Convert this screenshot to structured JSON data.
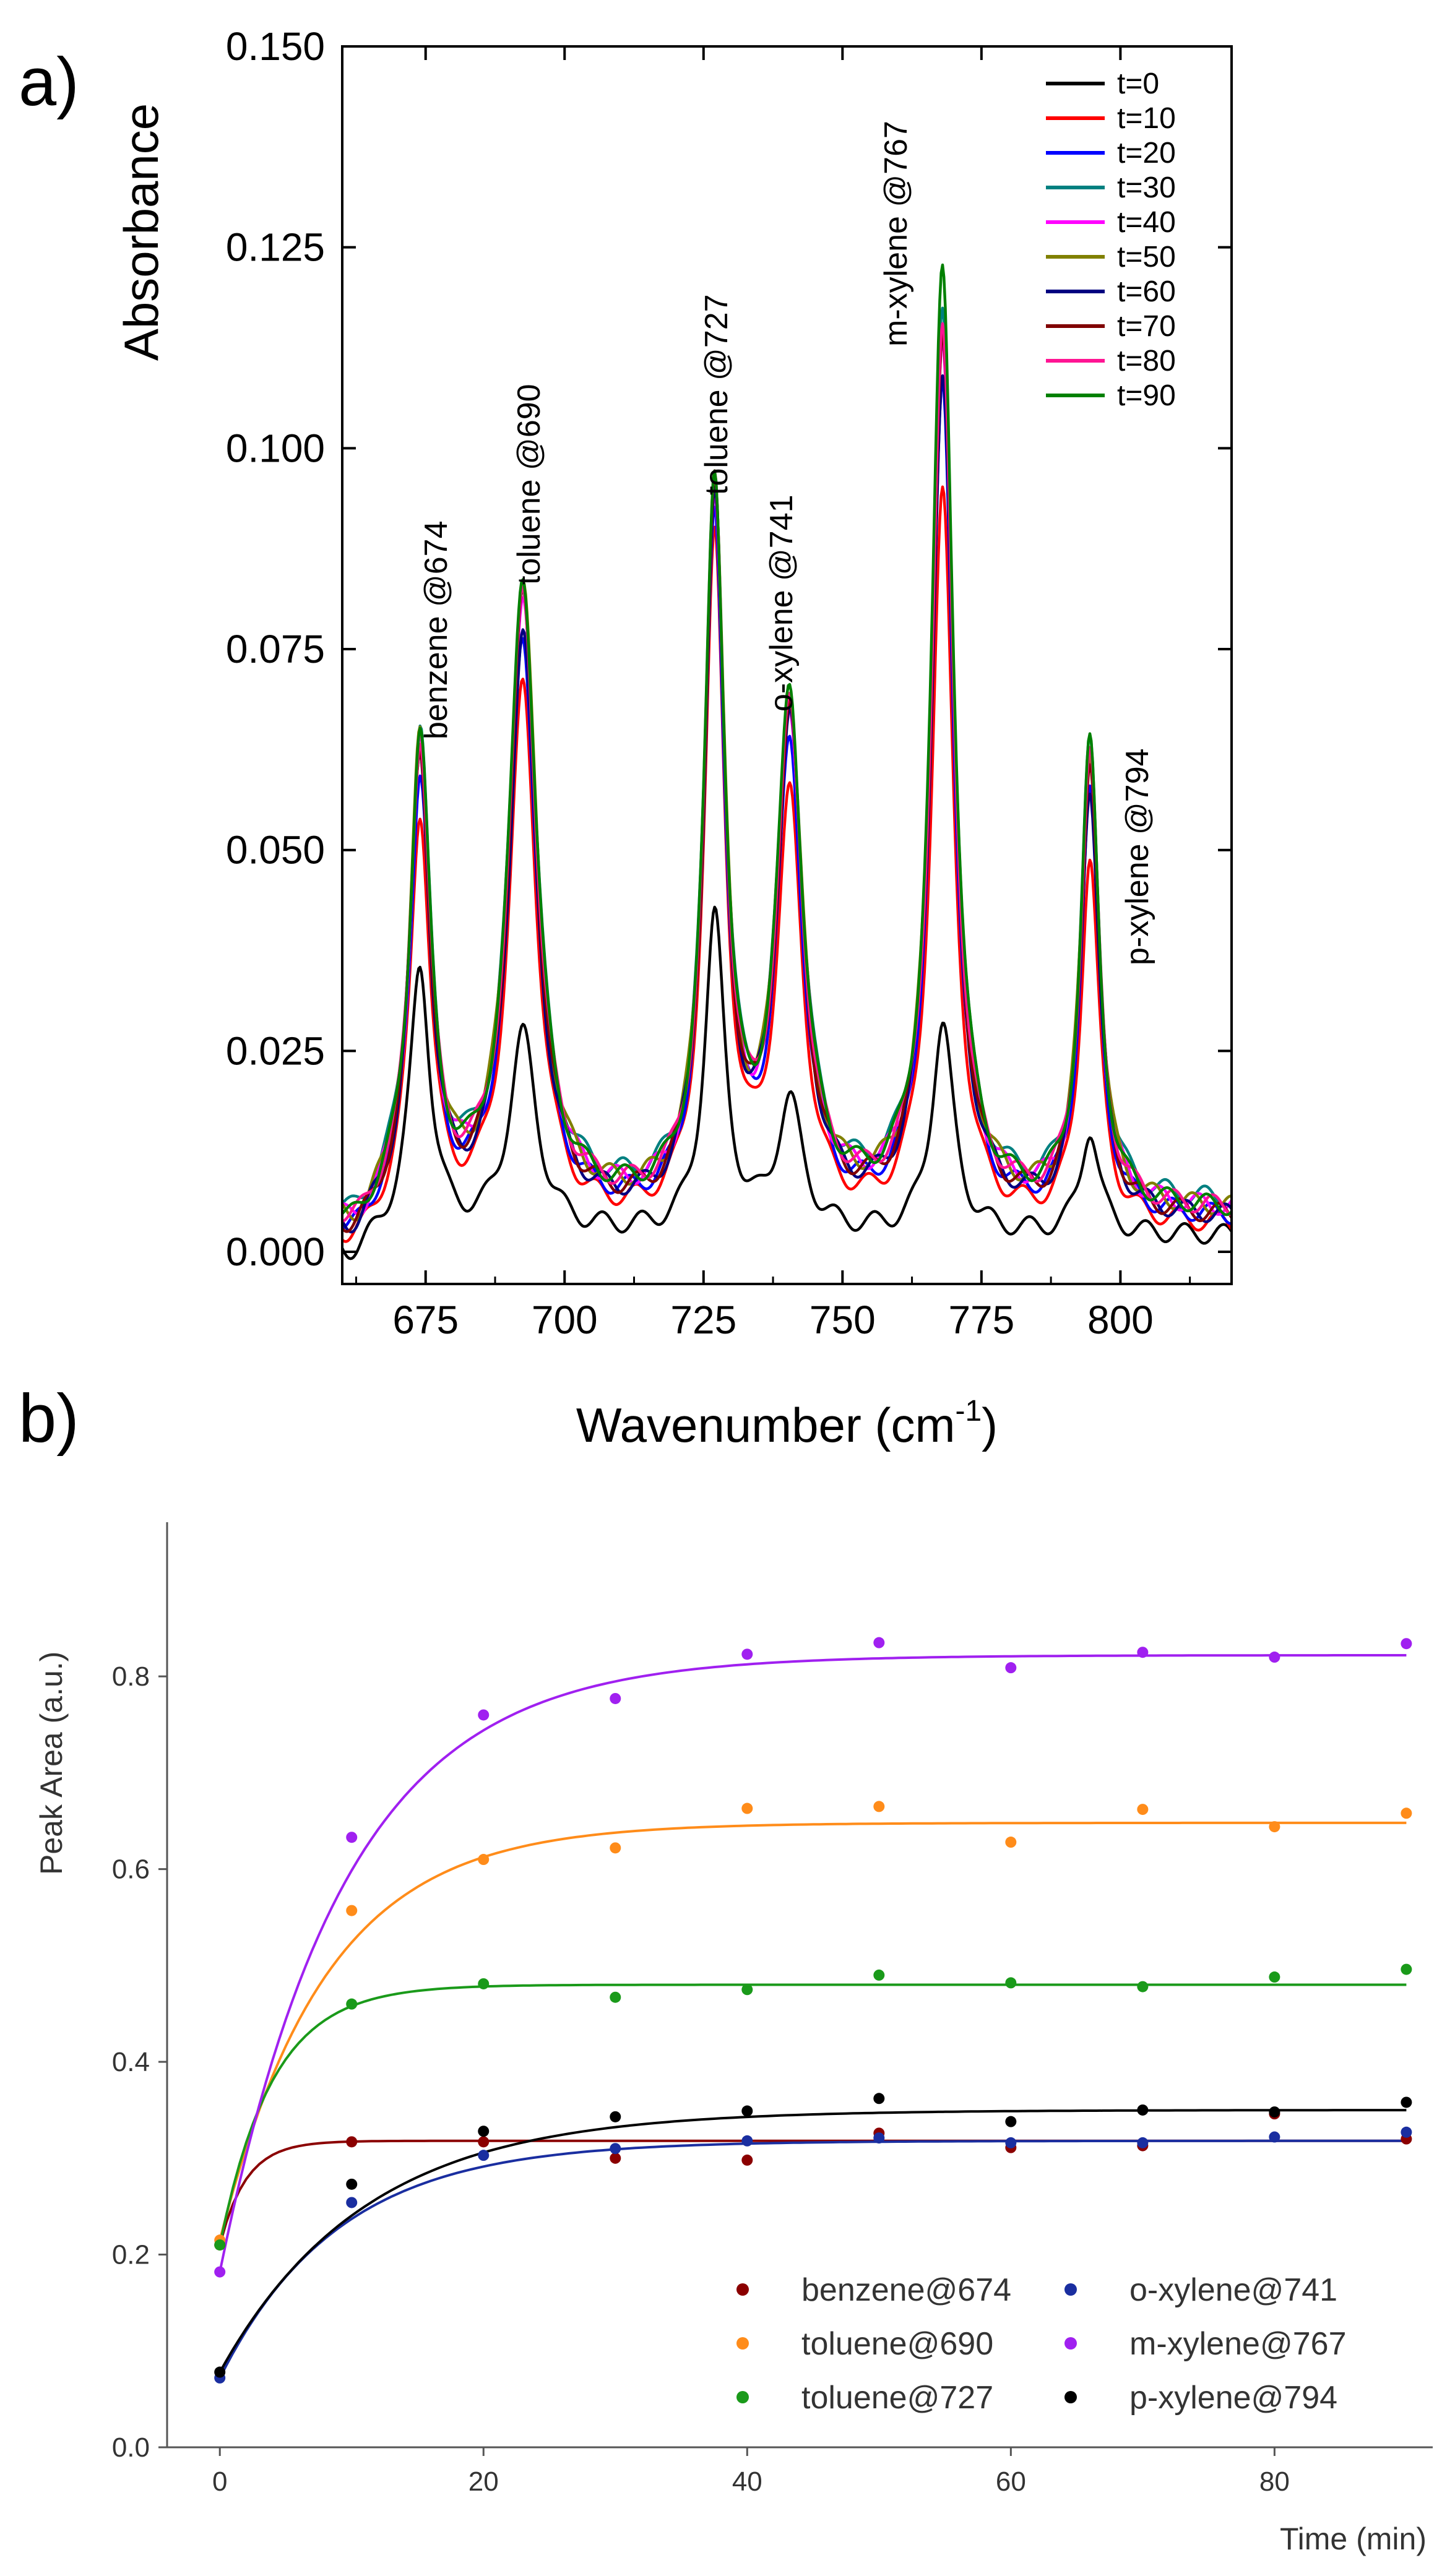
{
  "panel_a_letter": "a)",
  "panel_b_letter": "b)",
  "chart_data": [
    {
      "type": "line",
      "panel": "a)",
      "xlabel": "Wavenumber (cm",
      "xlabel_sup": "-1",
      "xlabel_close": ")",
      "ylabel": "Absorbance",
      "xlim": [
        660,
        820
      ],
      "ylim": [
        -0.004,
        0.15
      ],
      "xticks": [
        675,
        700,
        725,
        750,
        775,
        800
      ],
      "yticks": [
        0.0,
        0.025,
        0.05,
        0.075,
        0.1,
        0.125,
        0.15
      ],
      "xtick_labels": [
        "675",
        "700",
        "725",
        "750",
        "775",
        "800"
      ],
      "ytick_labels": [
        "0.000",
        "0.025",
        "0.050",
        "0.075",
        "0.100",
        "0.125",
        "0.150"
      ],
      "legend_position": "top-right",
      "peaks": [
        {
          "label": "benzene @674",
          "center": 674,
          "width": 2.2
        },
        {
          "label": "toluene @690",
          "center": 692.5,
          "width": 3.0
        },
        {
          "label": "toluene @727",
          "center": 727,
          "width": 2.2
        },
        {
          "label": "o-xylene @741",
          "center": 740.5,
          "width": 2.8
        },
        {
          "label": "m-xylene @767",
          "center": 768,
          "width": 2.4
        },
        {
          "label": "p-xylene @794",
          "center": 794.5,
          "width": 2.0
        }
      ],
      "series": [
        {
          "name": "t=0",
          "color": "#000000",
          "peaks": [
            0.033,
            0.0245,
            0.039,
            0.016,
            0.026,
            0.013
          ],
          "baseline": 0.002
        },
        {
          "name": "t=10",
          "color": "#ff0000",
          "peaks": [
            0.05,
            0.066,
            0.083,
            0.051,
            0.09,
            0.045
          ],
          "baseline": 0.003
        },
        {
          "name": "t=20",
          "color": "#0000ff",
          "peaks": [
            0.054,
            0.071,
            0.085,
            0.056,
            0.102,
            0.052
          ],
          "baseline": 0.004
        },
        {
          "name": "t=30",
          "color": "#008080",
          "peaks": [
            0.057,
            0.076,
            0.087,
            0.06,
            0.11,
            0.056
          ],
          "baseline": 0.006
        },
        {
          "name": "t=40",
          "color": "#ff00ff",
          "peaks": [
            0.056,
            0.076,
            0.087,
            0.06,
            0.108,
            0.055
          ],
          "baseline": 0.005
        },
        {
          "name": "t=50",
          "color": "#808000",
          "peaks": [
            0.057,
            0.077,
            0.088,
            0.06,
            0.11,
            0.056
          ],
          "baseline": 0.005
        },
        {
          "name": "t=60",
          "color": "#000080",
          "peaks": [
            0.056,
            0.071,
            0.087,
            0.06,
            0.104,
            0.053
          ],
          "baseline": 0.004
        },
        {
          "name": "t=70",
          "color": "#800000",
          "peaks": [
            0.057,
            0.076,
            0.088,
            0.06,
            0.108,
            0.056
          ],
          "baseline": 0.004
        },
        {
          "name": "t=80",
          "color": "#ff1493",
          "peaks": [
            0.057,
            0.076,
            0.088,
            0.06,
            0.108,
            0.056
          ],
          "baseline": 0.005
        },
        {
          "name": "t=90",
          "color": "#008000",
          "peaks": [
            0.058,
            0.078,
            0.089,
            0.062,
            0.116,
            0.057
          ],
          "baseline": 0.005
        }
      ]
    },
    {
      "type": "scatter",
      "panel": "b)",
      "xlabel": "Time (min)",
      "ylabel": "Peak Area (a.u.)",
      "xlim": [
        -4,
        92
      ],
      "ylim": [
        0.0,
        0.96
      ],
      "xticks": [
        0,
        20,
        40,
        60,
        80
      ],
      "yticks": [
        0.0,
        0.2,
        0.4,
        0.6,
        0.8
      ],
      "xtick_labels": [
        "0",
        "20",
        "40",
        "60",
        "80"
      ],
      "ytick_labels": [
        "0.0",
        "0.2",
        "0.4",
        "0.6",
        "0.8"
      ],
      "legend_position": "bottom-right",
      "series": [
        {
          "name": "benzene@674",
          "color": "#8b0000",
          "x": [
            0,
            10,
            20,
            30,
            40,
            50,
            60,
            70,
            80,
            90
          ],
          "y": [
            0.21,
            0.317,
            0.317,
            0.3,
            0.298,
            0.326,
            0.311,
            0.313,
            0.346,
            0.32
          ],
          "fit": {
            "y0": 0.21,
            "ymax": 0.318,
            "tau": 2.0
          }
        },
        {
          "name": "toluene@690",
          "color": "#ff8c1a",
          "x": [
            0,
            10,
            20,
            30,
            40,
            50,
            60,
            70,
            80,
            90
          ],
          "y": [
            0.215,
            0.557,
            0.61,
            0.622,
            0.663,
            0.665,
            0.628,
            0.662,
            0.644,
            0.658
          ],
          "fit": {
            "y0": 0.215,
            "ymax": 0.648,
            "tau": 8.0
          }
        },
        {
          "name": "toluene@727",
          "color": "#1a9a1a",
          "x": [
            0,
            10,
            20,
            30,
            40,
            50,
            60,
            70,
            80,
            90
          ],
          "y": [
            0.21,
            0.46,
            0.481,
            0.467,
            0.475,
            0.49,
            0.482,
            0.478,
            0.488,
            0.496
          ],
          "fit": {
            "y0": 0.21,
            "ymax": 0.48,
            "tau": 4.0
          }
        },
        {
          "name": "o-xylene@741",
          "color": "#1a2ea0",
          "x": [
            0,
            10,
            20,
            30,
            40,
            50,
            60,
            70,
            80,
            90
          ],
          "y": [
            0.072,
            0.254,
            0.303,
            0.31,
            0.318,
            0.321,
            0.316,
            0.316,
            0.322,
            0.327
          ],
          "fit": {
            "y0": 0.072,
            "ymax": 0.318,
            "tau": 9.0
          }
        },
        {
          "name": "m-xylene@767",
          "color": "#a020f0",
          "x": [
            0,
            10,
            20,
            30,
            40,
            50,
            60,
            70,
            80,
            90
          ],
          "y": [
            0.182,
            0.633,
            0.76,
            0.777,
            0.823,
            0.835,
            0.809,
            0.825,
            0.82,
            0.834
          ],
          "fit": {
            "y0": 0.182,
            "ymax": 0.822,
            "tau": 9.5
          }
        },
        {
          "name": "p-xylene@794",
          "color": "#000000",
          "x": [
            0,
            10,
            20,
            30,
            40,
            50,
            60,
            70,
            80,
            90
          ],
          "y": [
            0.078,
            0.273,
            0.328,
            0.343,
            0.349,
            0.362,
            0.338,
            0.35,
            0.348,
            0.358
          ],
          "fit": {
            "y0": 0.078,
            "ymax": 0.35,
            "tau": 11.0
          }
        }
      ]
    }
  ]
}
